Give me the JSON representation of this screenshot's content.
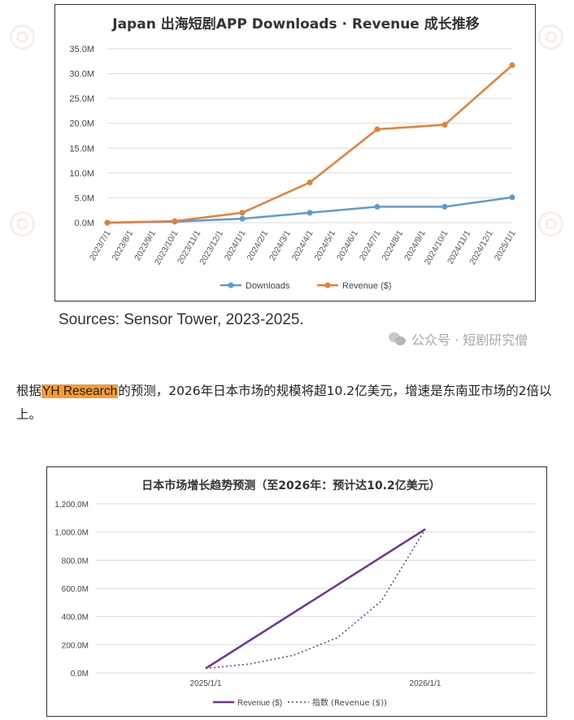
{
  "chart_data": [
    {
      "type": "line",
      "title": "Japan  出海短剧APP  Downloads · Revenue    成长推移",
      "categories": [
        "2023/7/1",
        "2023/8/1",
        "2023/9/1",
        "2023/10/1",
        "2023/11/1",
        "2023/12/1",
        "2024/1/1",
        "2024/2/1",
        "2024/3/1",
        "2024/4/1",
        "2024/5/1",
        "2024/6/1",
        "2024/7/1",
        "2024/8/1",
        "2024/9/1",
        "2024/10/1",
        "2024/11/1",
        "2024/12/1",
        "2025/1/1"
      ],
      "y_ticks": [
        "0.0M",
        "5.0M",
        "10.0M",
        "15.0M",
        "20.0M",
        "25.0M",
        "30.0M",
        "35.0M"
      ],
      "ylim": [
        0,
        35
      ],
      "series": [
        {
          "name": "Downloads",
          "color": "#5b9bd5",
          "points": [
            {
              "x": 0,
              "y": 0.0
            },
            {
              "x": 3,
              "y": 0.2
            },
            {
              "x": 6,
              "y": 0.8
            },
            {
              "x": 9,
              "y": 2.0
            },
            {
              "x": 12,
              "y": 3.2
            },
            {
              "x": 15,
              "y": 3.2
            },
            {
              "x": 18,
              "y": 5.1
            }
          ]
        },
        {
          "name": "Revenue ($)",
          "color": "#ed7d31",
          "points": [
            {
              "x": 0,
              "y": 0.0
            },
            {
              "x": 3,
              "y": 0.3
            },
            {
              "x": 6,
              "y": 2.0
            },
            {
              "x": 9,
              "y": 8.1
            },
            {
              "x": 12,
              "y": 18.8
            },
            {
              "x": 15,
              "y": 19.7
            },
            {
              "x": 18,
              "y": 31.7
            }
          ]
        }
      ]
    },
    {
      "type": "line",
      "title": "日本市场增长趋势预测（至2026年：预计达10.2亿美元）",
      "categories": [
        "2025/1/1",
        "2026/1/1"
      ],
      "y_ticks": [
        "0.0M",
        "200.0M",
        "400.0M",
        "600.0M",
        "800.0M",
        "1,000.0M",
        "1,200.0M"
      ],
      "ylim": [
        0,
        1200
      ],
      "series": [
        {
          "name": "Revenue ($)",
          "color": "#7030a0",
          "style": "solid",
          "points": [
            {
              "x": 0,
              "y": 31.7
            },
            {
              "x": 1,
              "y": 1020
            }
          ]
        },
        {
          "name": "指数 (Revenue ($))",
          "color": "#7030a0",
          "style": "dotted",
          "points": [
            {
              "x": 0,
              "y": 31.7
            },
            {
              "x": 0.2,
              "y": 63
            },
            {
              "x": 0.4,
              "y": 125
            },
            {
              "x": 0.6,
              "y": 250
            },
            {
              "x": 0.8,
              "y": 510
            },
            {
              "x": 1,
              "y": 1020
            }
          ]
        }
      ]
    }
  ],
  "sources_text": "Sources: Sensor Tower, 2023-2025.",
  "wechat_label": "公众号 · 短剧研究僧",
  "paragraph": {
    "before": "根据",
    "highlight": "YH Research",
    "after": "的预测，2026年日本市场的规模将超10.2亿美元，增速是东南亚市场的2倍以上。"
  },
  "colors": {
    "downloads": "#5b9bd5",
    "revenue": "#ed7d31",
    "forecast": "#7030a0",
    "highlight": "#f39c38"
  }
}
